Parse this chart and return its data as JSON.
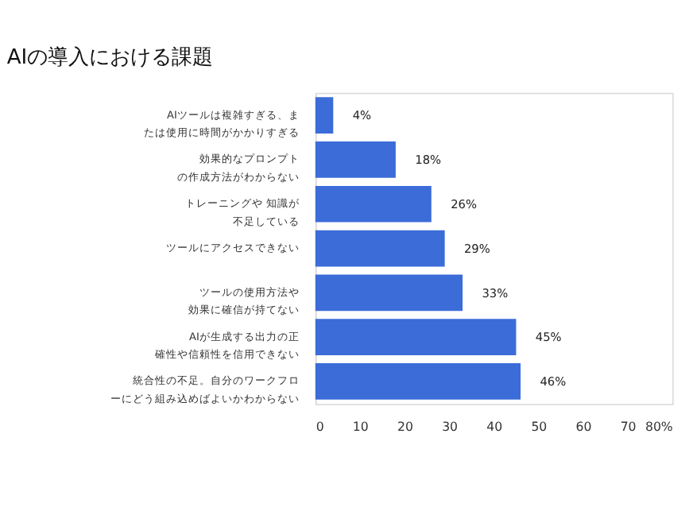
{
  "chart_data": {
    "type": "bar",
    "orientation": "horizontal",
    "title": "AIの導入における課題",
    "categories": [
      "AIツールは複雑すぎる、または使用に時間がかかりすぎる",
      "効果的なプロンプトの作成方法がわからない",
      "トレーニングや 知識が不足している",
      "ツールにアクセスできない",
      "ツールの使用方法や効果に確信が持てない",
      "AIが生成する出力の正確性や信頼性を信用できない",
      "統合性の不足。自分のワークフローにどう組み込めばよいかわからない"
    ],
    "values": [
      4,
      18,
      26,
      29,
      33,
      45,
      46
    ],
    "value_labels": [
      "4%",
      "18%",
      "26%",
      "29%",
      "33%",
      "45%",
      "46%"
    ],
    "color": "#3b6cd8",
    "xlim": [
      0,
      80
    ],
    "xticks": [
      0,
      10,
      20,
      30,
      40,
      50,
      60,
      70,
      {
        "value": 80,
        "label": "80%"
      }
    ],
    "grid": false
  }
}
